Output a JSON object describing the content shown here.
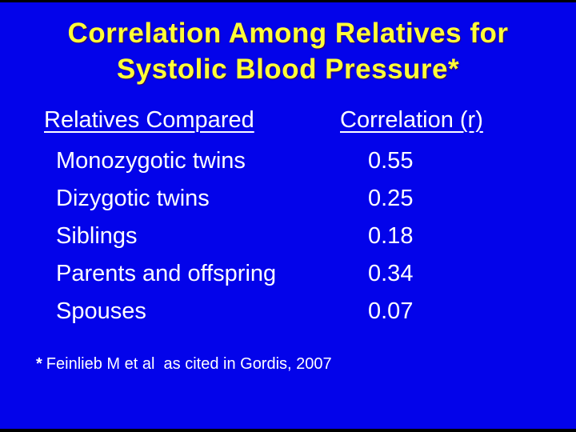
{
  "slide": {
    "title_line1": "Correlation Among Relatives for",
    "title_line2": "Systolic Blood Pressure*"
  },
  "table": {
    "col1_header": "Relatives Compared",
    "col2_header": "Correlation (r)",
    "rows": [
      {
        "label": "Monozygotic twins",
        "value": "0.55"
      },
      {
        "label": "Dizygotic twins",
        "value": "0.25"
      },
      {
        "label": "Siblings",
        "value": "0.18"
      },
      {
        "label": "Parents and offspring",
        "value": "0.34"
      },
      {
        "label": "Spouses",
        "value": "0.07"
      }
    ]
  },
  "footnote": {
    "marker": "*",
    "text": "Feinlieb M et al  as cited in Gordis, 2007"
  },
  "colors": {
    "background": "#0303ea",
    "title_text": "#ffff38",
    "body_text": "#ffffff",
    "edge_bars": "#000000"
  },
  "chart_data": {
    "type": "table",
    "title": "Correlation Among Relatives for Systolic Blood Pressure",
    "columns": [
      "Relatives Compared",
      "Correlation (r)"
    ],
    "categories": [
      "Monozygotic twins",
      "Dizygotic twins",
      "Siblings",
      "Parents and offspring",
      "Spouses"
    ],
    "values": [
      0.55,
      0.25,
      0.18,
      0.34,
      0.07
    ],
    "source_note": "* Feinlieb M et al  as cited in Gordis, 2007"
  }
}
